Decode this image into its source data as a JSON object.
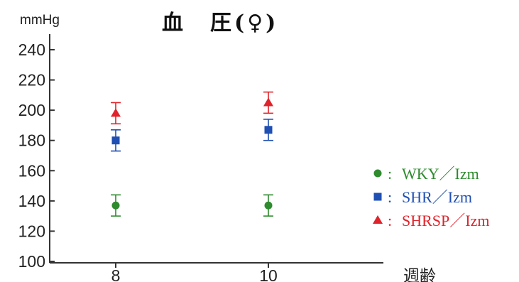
{
  "chart_data": {
    "type": "scatter",
    "title": "血　圧(♀)",
    "ylabel": "mmHg",
    "xlabel": "週齢",
    "ylim": [
      100,
      240
    ],
    "yticks": [
      100,
      120,
      140,
      160,
      180,
      200,
      220,
      240
    ],
    "categories": [
      "8",
      "10"
    ],
    "legend_position": "right",
    "grid": false,
    "series": [
      {
        "name": "WKY／Izm",
        "marker": "circle",
        "color": "#2e8b2e",
        "values": [
          137,
          137
        ],
        "errors": [
          7,
          7
        ]
      },
      {
        "name": "SHR／Izm",
        "marker": "square",
        "color": "#1f4fb3",
        "values": [
          180,
          187
        ],
        "errors": [
          7,
          7
        ]
      },
      {
        "name": "SHRSP／Izm",
        "marker": "triangle",
        "color": "#e0232b",
        "values": [
          198,
          205
        ],
        "errors": [
          7,
          7
        ]
      }
    ]
  }
}
